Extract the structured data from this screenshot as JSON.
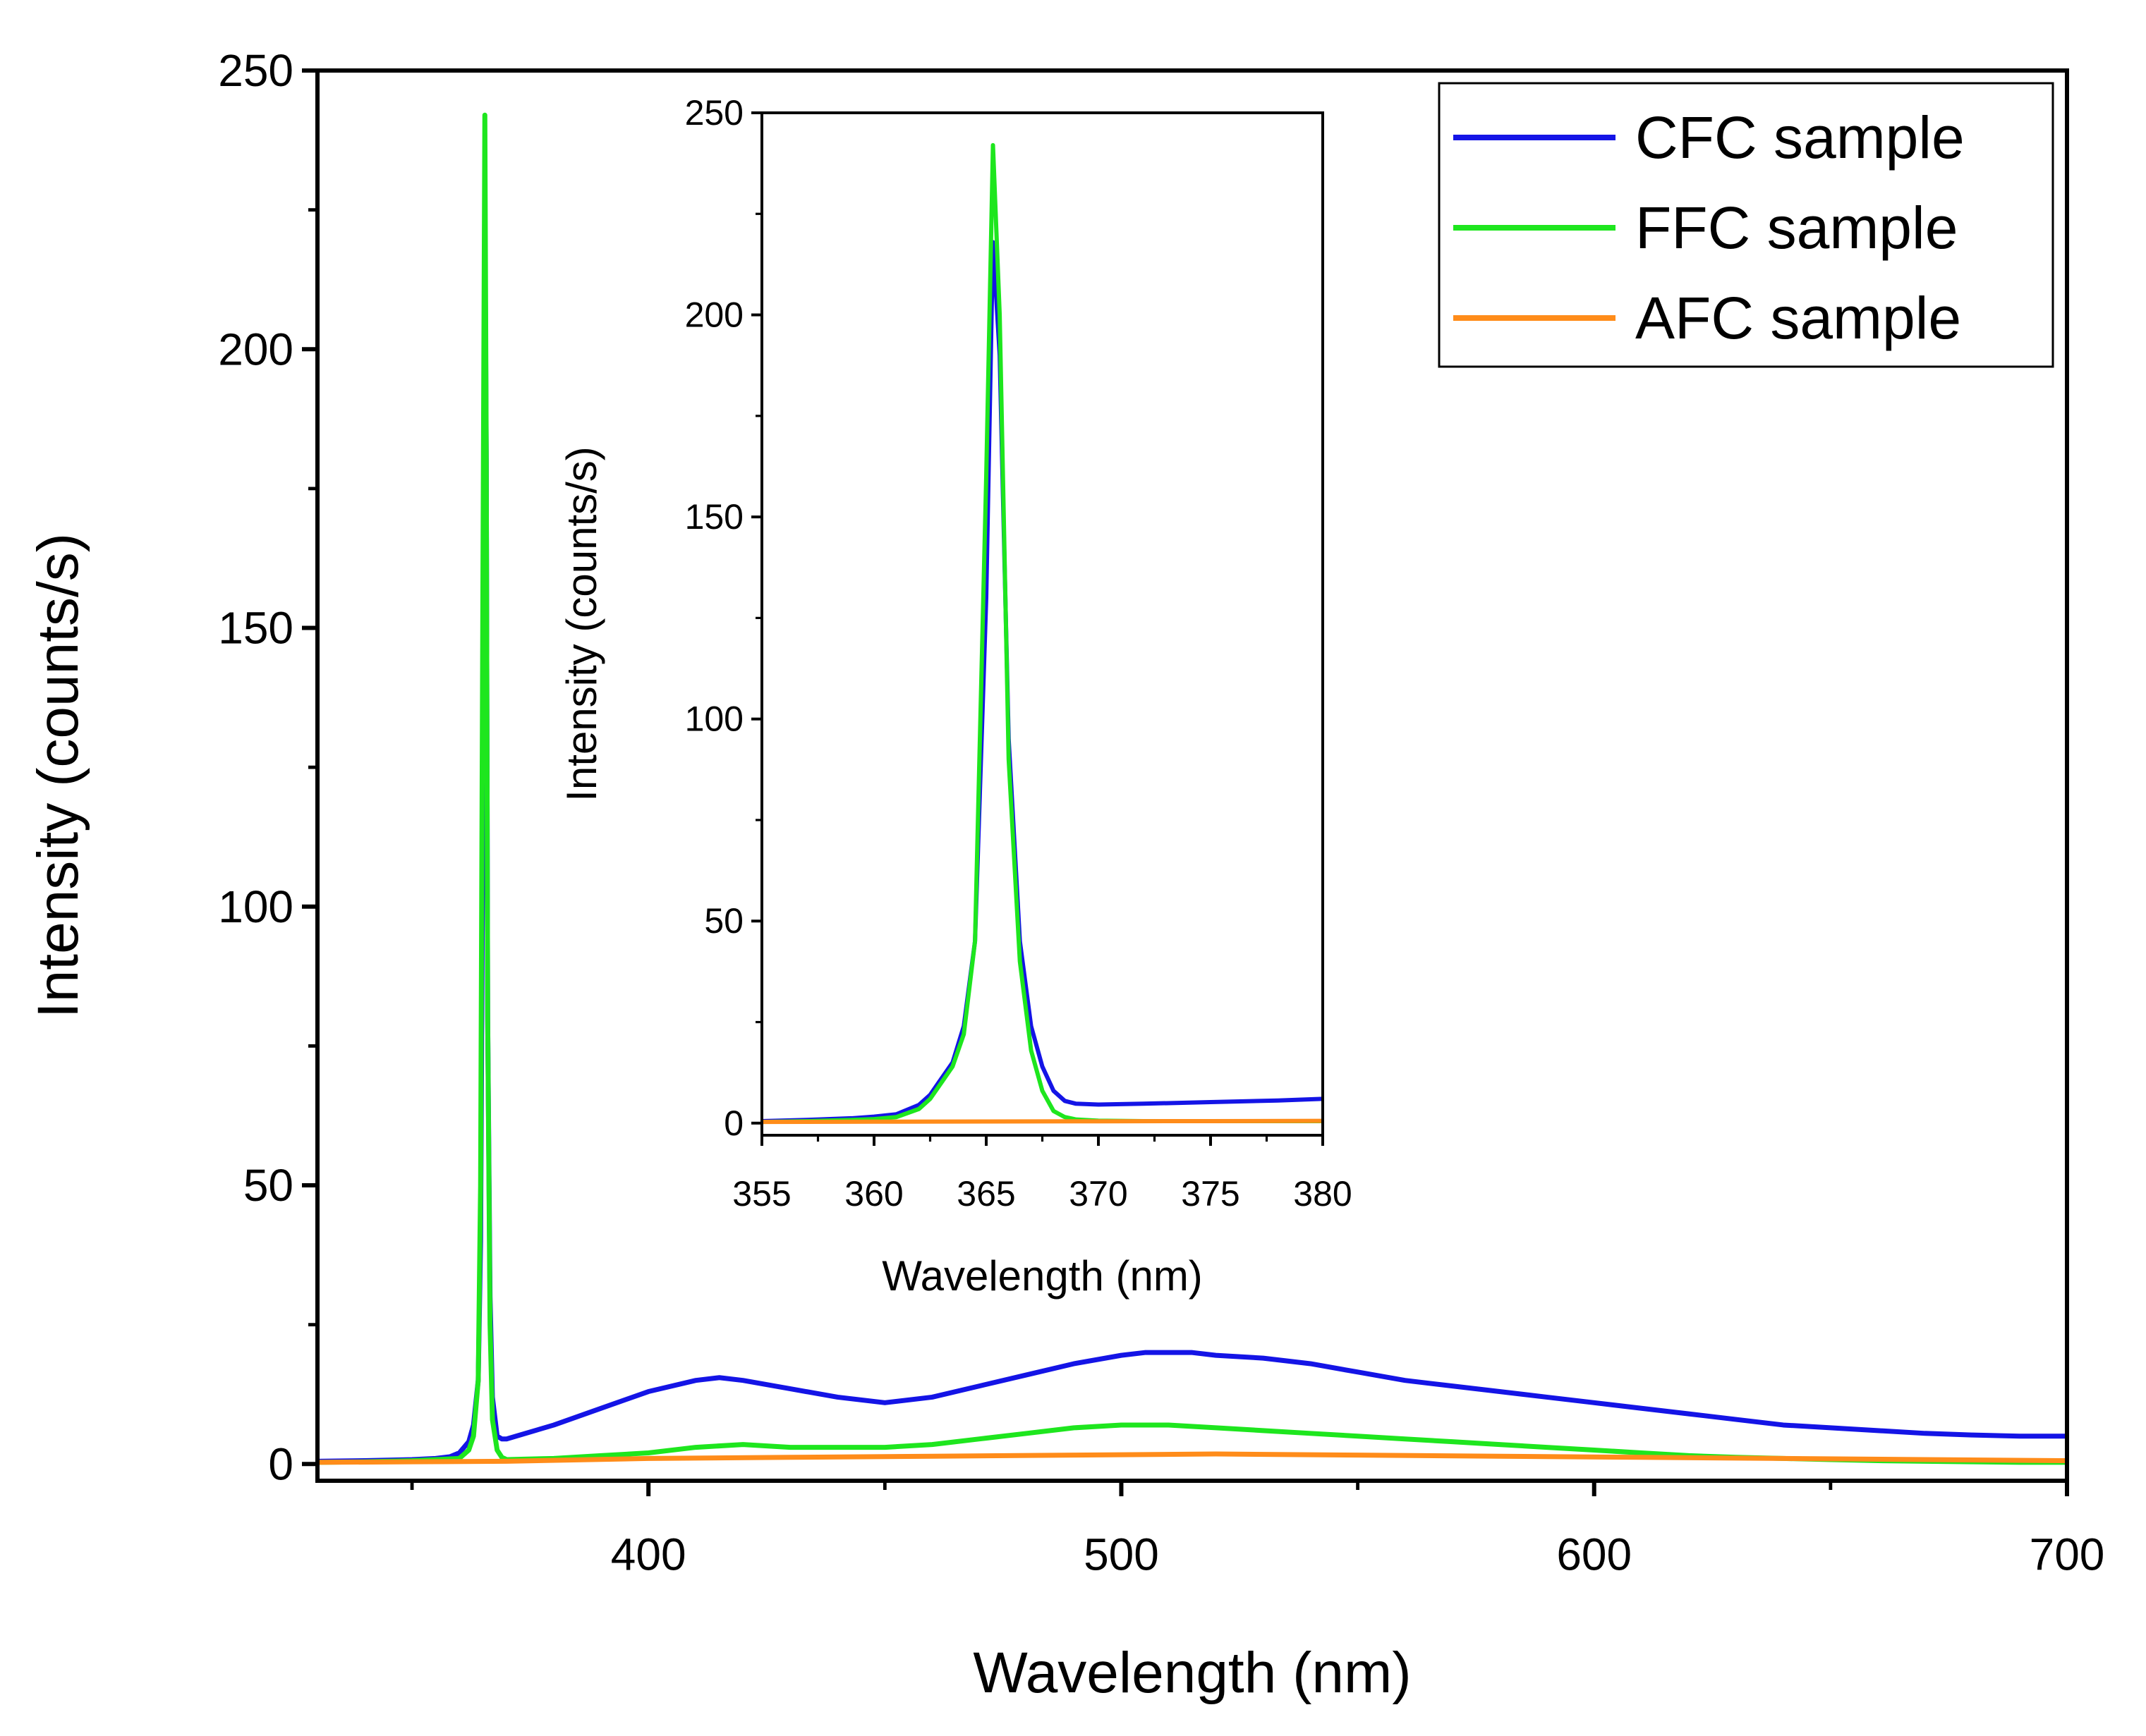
{
  "chart_data": [
    {
      "id": "main",
      "type": "line",
      "title": "",
      "xlabel": "Wavelength (nm)",
      "ylabel": "Intensity (counts/s)",
      "xlim": [
        330,
        700
      ],
      "ylim": [
        -3,
        250
      ],
      "x_ticks": [
        400,
        500,
        600,
        700
      ],
      "y_ticks": [
        0,
        50,
        100,
        150,
        200,
        250
      ],
      "x_tick_labels": [
        "400",
        "500",
        "600",
        "700"
      ],
      "y_tick_labels": [
        "0",
        "50",
        "100",
        "150",
        "200",
        "250"
      ],
      "grid": false,
      "legend_position": "top-right",
      "series": [
        {
          "name": "CFC sample",
          "color": "#1414e6",
          "x": [
            330,
            340,
            350,
            355,
            358,
            360,
            362,
            363,
            364,
            364.5,
            365,
            365.4,
            365.7,
            366,
            366.5,
            367,
            368,
            369,
            370,
            380,
            390,
            400,
            410,
            415,
            420,
            430,
            440,
            450,
            460,
            470,
            480,
            490,
            500,
            505,
            510,
            515,
            520,
            530,
            540,
            550,
            560,
            570,
            580,
            590,
            600,
            610,
            620,
            630,
            640,
            650,
            660,
            670,
            680,
            690,
            700
          ],
          "y": [
            0.5,
            0.6,
            0.8,
            1.0,
            1.3,
            2.0,
            4.0,
            7.0,
            15,
            40,
            120,
            225,
            180,
            80,
            30,
            12,
            5,
            4.5,
            4.5,
            7,
            10,
            13,
            15,
            15.5,
            15,
            13.5,
            12,
            11,
            12,
            14,
            16,
            18,
            19.5,
            20,
            20,
            20,
            19.5,
            19,
            18,
            16.5,
            15,
            14,
            13,
            12,
            11,
            10,
            9,
            8,
            7,
            6.5,
            6,
            5.5,
            5.2,
            5,
            5
          ]
        },
        {
          "name": "FFC sample",
          "color": "#1ee61e",
          "x": [
            330,
            340,
            350,
            355,
            360,
            362,
            363,
            364,
            364.5,
            365,
            365.4,
            365.7,
            366,
            366.5,
            367,
            368,
            369,
            370,
            380,
            390,
            400,
            410,
            420,
            430,
            440,
            450,
            460,
            470,
            480,
            490,
            500,
            510,
            520,
            530,
            540,
            550,
            560,
            570,
            580,
            590,
            600,
            610,
            620,
            630,
            640,
            650,
            660,
            670,
            680,
            690,
            700
          ],
          "y": [
            0.3,
            0.4,
            0.6,
            0.8,
            1.0,
            2.5,
            5,
            15,
            50,
            160,
            242,
            180,
            80,
            25,
            8,
            2.5,
            1.2,
            0.8,
            1.0,
            1.5,
            2.0,
            3.0,
            3.5,
            3.0,
            3.0,
            3.0,
            3.5,
            4.5,
            5.5,
            6.5,
            7.0,
            7.0,
            6.5,
            6.0,
            5.5,
            5.0,
            4.5,
            4.0,
            3.5,
            3.0,
            2.5,
            2.0,
            1.5,
            1.2,
            1.0,
            0.8,
            0.6,
            0.5,
            0.4,
            0.3,
            0.3
          ]
        },
        {
          "name": "AFC sample",
          "color": "#ff8c1a",
          "x": [
            330,
            350,
            370,
            400,
            430,
            460,
            490,
            520,
            550,
            580,
            610,
            640,
            670,
            700
          ],
          "y": [
            0.3,
            0.4,
            0.5,
            1.0,
            1.2,
            1.4,
            1.6,
            1.8,
            1.6,
            1.4,
            1.2,
            1.0,
            0.8,
            0.6
          ]
        }
      ]
    },
    {
      "id": "inset",
      "type": "line",
      "title": "",
      "xlabel": "Wavelength (nm)",
      "ylabel": "Intensity (counts/s)",
      "xlim": [
        355,
        380
      ],
      "ylim": [
        -3,
        250
      ],
      "x_ticks": [
        355,
        360,
        365,
        370,
        375,
        380
      ],
      "y_ticks": [
        0,
        50,
        100,
        150,
        200,
        250
      ],
      "x_tick_labels": [
        "355",
        "360",
        "365",
        "370",
        "375",
        "380"
      ],
      "y_tick_labels": [
        "0",
        "50",
        "100",
        "150",
        "200",
        "250"
      ],
      "grid": false,
      "series": [
        {
          "name": "CFC sample",
          "color": "#1414e6",
          "x": [
            355,
            357,
            359,
            360,
            361,
            362,
            362.5,
            363,
            363.5,
            364,
            364.5,
            365,
            365.3,
            365.6,
            366,
            366.5,
            367,
            367.5,
            368,
            368.5,
            369,
            370,
            372,
            375,
            378,
            380
          ],
          "y": [
            0.5,
            0.8,
            1.2,
            1.6,
            2.2,
            4.5,
            7,
            11,
            15,
            24,
            45,
            130,
            218,
            190,
            95,
            45,
            24,
            14,
            8,
            5.5,
            4.8,
            4.6,
            4.8,
            5.2,
            5.6,
            6.0
          ]
        },
        {
          "name": "FFC sample",
          "color": "#1ee61e",
          "x": [
            355,
            357,
            359,
            360,
            361,
            362,
            362.5,
            363,
            363.5,
            364,
            364.5,
            365,
            365.3,
            365.6,
            366,
            366.5,
            367,
            367.5,
            368,
            368.5,
            369,
            370,
            372,
            375,
            378,
            380
          ],
          "y": [
            0.3,
            0.5,
            0.8,
            1.0,
            1.5,
            3.5,
            6,
            10,
            14,
            22,
            45,
            160,
            242,
            200,
            90,
            40,
            18,
            8,
            3,
            1.5,
            0.9,
            0.6,
            0.5,
            0.5,
            0.5,
            0.5
          ]
        },
        {
          "name": "AFC sample",
          "color": "#ff8c1a",
          "x": [
            355,
            360,
            365,
            370,
            375,
            380
          ],
          "y": [
            0.3,
            0.35,
            0.4,
            0.45,
            0.5,
            0.55
          ]
        }
      ]
    }
  ]
}
